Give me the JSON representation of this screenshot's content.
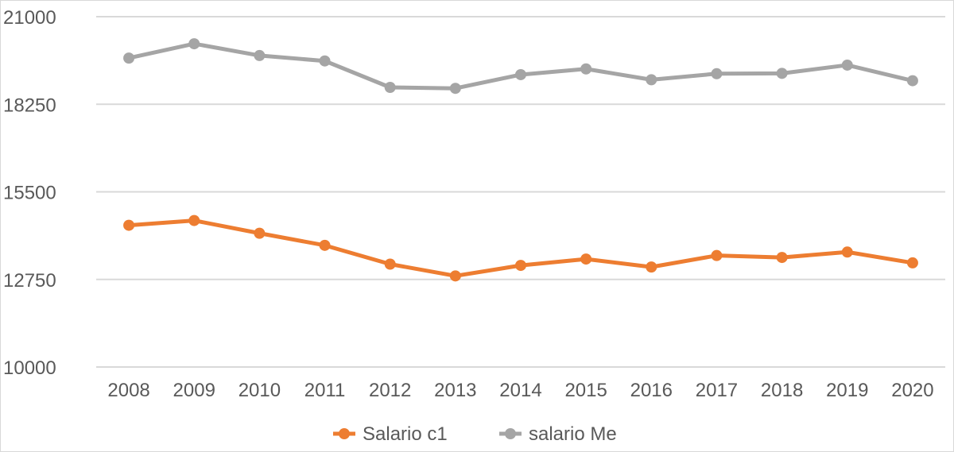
{
  "chart_data": {
    "type": "line",
    "title": "",
    "xlabel": "",
    "ylabel": "",
    "categories": [
      "2008",
      "2009",
      "2010",
      "2011",
      "2012",
      "2013",
      "2014",
      "2015",
      "2016",
      "2017",
      "2018",
      "2019",
      "2020"
    ],
    "ylim": [
      10000,
      21000
    ],
    "yticks": [
      10000,
      12750,
      15500,
      18250,
      21000
    ],
    "grid": true,
    "legend_position": "bottom",
    "series": [
      {
        "name": "Salario c1",
        "color": "#ED7D31",
        "values": [
          14450,
          14600,
          14200,
          13820,
          13230,
          12860,
          13190,
          13390,
          13140,
          13500,
          13440,
          13610,
          13270
        ]
      },
      {
        "name": "salario Me",
        "color": "#A5A5A5",
        "values": [
          19700,
          20150,
          19780,
          19610,
          18780,
          18750,
          19180,
          19360,
          19020,
          19210,
          19220,
          19480,
          18990
        ]
      }
    ]
  }
}
